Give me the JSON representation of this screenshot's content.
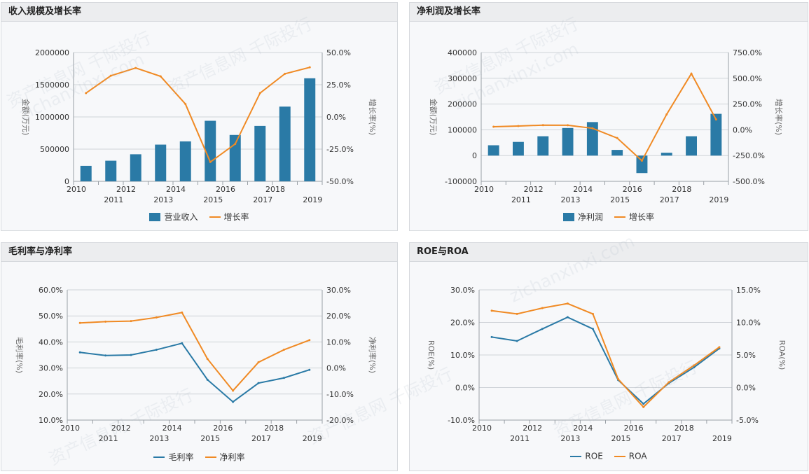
{
  "colors": {
    "blue": "#2a7aa6",
    "orange": "#f08a24",
    "grid": "#cfd3d8",
    "axis": "#666666"
  },
  "watermark": {
    "line1": "资产信息网 千际投行",
    "line2": "zichanxinxi.com"
  },
  "panels": [
    {
      "title": "收入规模及增长率",
      "legend": [
        {
          "label": "营业收入",
          "kind": "bar",
          "color": "#2a7aa6"
        },
        {
          "label": "增长率",
          "kind": "line",
          "color": "#f08a24"
        }
      ],
      "chart_data": {
        "type": "bar",
        "categories": [
          "2010",
          "2011",
          "2012",
          "2013",
          "2014",
          "2015",
          "2016",
          "2017",
          "2018",
          "2019"
        ],
        "series": [
          {
            "name": "营业收入",
            "kind": "bar",
            "axis": "left",
            "values": [
              240000,
              320000,
              420000,
              570000,
              620000,
              940000,
              720000,
              860000,
              1160000,
              1600000
            ]
          },
          {
            "name": "增长率",
            "kind": "line",
            "axis": "right",
            "values": [
              18.5,
              32,
              38,
              31.5,
              10,
              -35,
              -21,
              18.5,
              33.5,
              38.5
            ]
          }
        ],
        "ylabel": "金额(万元)",
        "y2label": "增长率(%)",
        "ylim": [
          0,
          2000000
        ],
        "y2lim": [
          -50,
          50
        ],
        "yticks": [
          "0",
          "500000",
          "1000000",
          "1500000",
          "2000000"
        ],
        "y2ticks": [
          "-50.0%",
          "-25.0%",
          "0.0%",
          "25.0%",
          "50.0%"
        ]
      }
    },
    {
      "title": "净利润及增长率",
      "legend": [
        {
          "label": "净利润",
          "kind": "bar",
          "color": "#2a7aa6"
        },
        {
          "label": "增长率",
          "kind": "line",
          "color": "#f08a24"
        }
      ],
      "chart_data": {
        "type": "bar",
        "categories": [
          "2010",
          "2011",
          "2012",
          "2013",
          "2014",
          "2015",
          "2016",
          "2017",
          "2018",
          "2019"
        ],
        "series": [
          {
            "name": "净利润",
            "kind": "bar",
            "axis": "left",
            "values": [
              40000,
              53000,
              75000,
              107000,
              130000,
              22000,
              -68000,
              11000,
              75000,
              162000
            ]
          },
          {
            "name": "增长率",
            "kind": "line",
            "axis": "right",
            "values": [
              30,
              37,
              45,
              44,
              15,
              -80,
              -300,
              150,
              545,
              100
            ]
          }
        ],
        "ylabel": "金额(万元)",
        "y2label": "增长率(%)",
        "ylim": [
          -100000,
          400000
        ],
        "y2lim": [
          -500,
          750
        ],
        "yticks": [
          "-100000",
          "0",
          "100000",
          "200000",
          "300000",
          "400000"
        ],
        "y2ticks": [
          "-500.0%",
          "-250.0%",
          "0.0%",
          "250.0%",
          "500.0%",
          "750.0%"
        ]
      }
    },
    {
      "title": "毛利率与净利率",
      "legend": [
        {
          "label": "毛利率",
          "kind": "line",
          "color": "#2a7aa6"
        },
        {
          "label": "净利率",
          "kind": "line",
          "color": "#f08a24"
        }
      ],
      "chart_data": {
        "type": "line",
        "categories": [
          "2010",
          "2011",
          "2012",
          "2013",
          "2014",
          "2015",
          "2016",
          "2017",
          "2018",
          "2019"
        ],
        "series": [
          {
            "name": "毛利率",
            "kind": "line",
            "axis": "left",
            "values": [
              36,
              34.8,
              35,
              37,
              39.5,
              25.5,
              17,
              24.2,
              26.2,
              29.3
            ]
          },
          {
            "name": "净利率",
            "kind": "line",
            "axis": "right",
            "values": [
              17.3,
              17.8,
              18,
              19.4,
              21.3,
              3.5,
              -8.7,
              2.2,
              7,
              10.7
            ]
          }
        ],
        "ylabel": "毛利率(%)",
        "y2label": "净利率(%)",
        "ylim": [
          10,
          60
        ],
        "y2lim": [
          -20,
          30
        ],
        "yticks": [
          "10.0%",
          "20.0%",
          "30.0%",
          "40.0%",
          "50.0%",
          "60.0%"
        ],
        "y2ticks": [
          "-20.0%",
          "-10.0%",
          "0.0%",
          "10.0%",
          "20.0%",
          "30.0%"
        ]
      }
    },
    {
      "title": "ROE与ROA",
      "legend": [
        {
          "label": "ROE",
          "kind": "line",
          "color": "#2a7aa6"
        },
        {
          "label": "ROA",
          "kind": "line",
          "color": "#f08a24"
        }
      ],
      "chart_data": {
        "type": "line",
        "categories": [
          "2010",
          "2011",
          "2012",
          "2013",
          "2014",
          "2015",
          "2016",
          "2017",
          "2018",
          "2019"
        ],
        "series": [
          {
            "name": "ROE",
            "kind": "line",
            "axis": "left",
            "values": [
              15.5,
              14.3,
              18,
              21.6,
              18,
              2.3,
              -5,
              1.3,
              6.2,
              12
            ],
            "note": ""
          },
          {
            "name": "ROA",
            "kind": "line",
            "axis": "right",
            "values": [
              11.8,
              11.3,
              12.2,
              12.9,
              11.3,
              1.3,
              -3,
              0.8,
              3.4,
              6.2
            ]
          }
        ],
        "ylabel": "ROE(%)",
        "y2label": "ROA(%)",
        "ylim": [
          -10,
          30
        ],
        "y2lim": [
          -5,
          15
        ],
        "yticks": [
          "-10.0%",
          "0.0%",
          "10.0%",
          "20.0%",
          "30.0%"
        ],
        "y2ticks": [
          "-5.0%",
          "0.0%",
          "5.0%",
          "10.0%",
          "15.0%"
        ]
      }
    }
  ]
}
